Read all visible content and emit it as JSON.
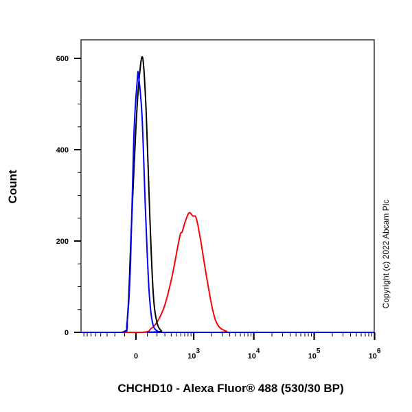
{
  "chart_data": {
    "type": "line",
    "subtype": "flow cytometry histogram",
    "xlabel": "CHCHD10 - Alexa Fluor® 488 (530/30 BP)",
    "ylabel": "Count",
    "x_scale": "biexponential",
    "ylim": [
      0,
      600
    ],
    "xlim": [
      -890,
      1000000
    ],
    "yticks": [
      "0",
      "200",
      "400",
      "600"
    ],
    "xticks": [
      {
        "value": 0,
        "base": "0",
        "exp": ""
      },
      {
        "value": 1000,
        "base": "10",
        "exp": "3"
      },
      {
        "value": 10000,
        "base": "10",
        "exp": "4"
      },
      {
        "value": 100000,
        "base": "10",
        "exp": "5"
      },
      {
        "value": 1000000,
        "base": "10",
        "exp": "6"
      }
    ],
    "grid": false,
    "annotation": "Copyright (c) 2022 Abcam Plc",
    "series": [
      {
        "color": "#ff0000",
        "points": [
          [
            41,
            0
          ],
          [
            135,
            8
          ],
          [
            209,
            25
          ],
          [
            300,
            60
          ],
          [
            411,
            120
          ],
          [
            514,
            180
          ],
          [
            587,
            215
          ],
          [
            632,
            220
          ],
          [
            727,
            245
          ],
          [
            838,
            262
          ],
          [
            963,
            255
          ],
          [
            1104,
            250
          ],
          [
            1316,
            200
          ],
          [
            1605,
            130
          ],
          [
            2073,
            50
          ],
          [
            2560,
            15
          ],
          [
            3560,
            2
          ],
          [
            4620,
            0
          ]
        ]
      },
      {
        "color": "#000000",
        "points": [
          [
            -123,
            0
          ],
          [
            -72,
            40
          ],
          [
            -41,
            220
          ],
          [
            0,
            450
          ],
          [
            29,
            560
          ],
          [
            59,
            600
          ],
          [
            90,
            480
          ],
          [
            123,
            260
          ],
          [
            157,
            90
          ],
          [
            195,
            25
          ],
          [
            254,
            3
          ],
          [
            348,
            0
          ]
        ]
      },
      {
        "color": "#0000ff",
        "points": [
          [
            -123,
            0
          ],
          [
            -78,
            20
          ],
          [
            -47,
            150
          ],
          [
            -18,
            430
          ],
          [
            12,
            555
          ],
          [
            23,
            560
          ],
          [
            53,
            470
          ],
          [
            84,
            260
          ],
          [
            117,
            90
          ],
          [
            152,
            20
          ],
          [
            210,
            2
          ],
          [
            300,
            0
          ]
        ]
      }
    ]
  }
}
